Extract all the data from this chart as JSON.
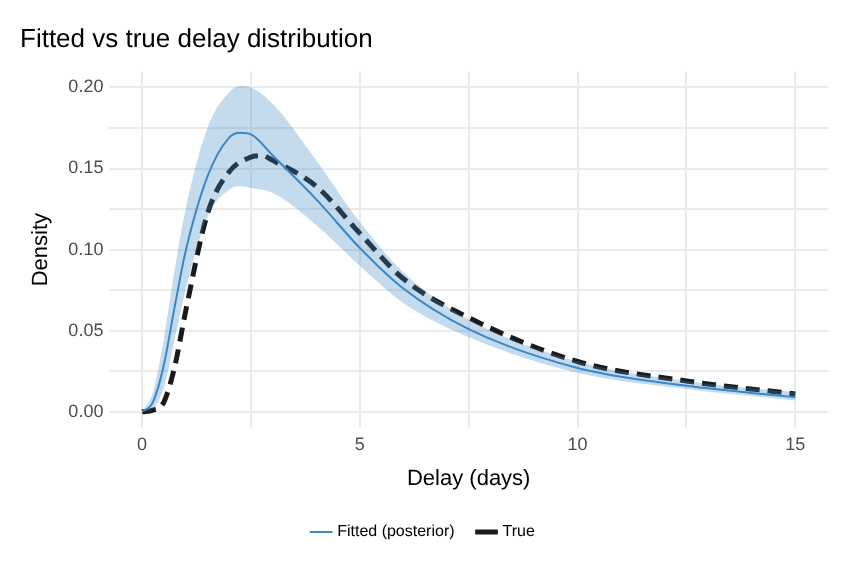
{
  "chart_data": {
    "type": "line",
    "title": "Fitted vs true delay distribution",
    "xlabel": "Delay (days)",
    "ylabel": "Density",
    "xlim": [
      -0.75,
      15.75
    ],
    "xticks": [
      0,
      {
        "value": 2.5,
        "label": null
      },
      5,
      {
        "value": 7.5,
        "label": null
      },
      10,
      {
        "value": 12.5,
        "label": null
      },
      15
    ],
    "ylim": [
      -0.01,
      0.21
    ],
    "yticks": [
      {
        "value": 0,
        "label": "0.00"
      },
      {
        "value": 0.025,
        "label": null
      },
      0.05,
      {
        "value": 0.075,
        "label": null
      },
      {
        "value": 0.1,
        "label": "0.10"
      },
      {
        "value": 0.125,
        "label": null
      },
      0.15,
      {
        "value": 0.175,
        "label": null
      },
      {
        "value": 0.2,
        "label": "0.20"
      }
    ],
    "grid": true,
    "legend": "bottom",
    "marker": "none",
    "series": [
      {
        "name": "Fitted (posterior)",
        "color": "#3a87c8",
        "line_style": "solid",
        "x": [
          0,
          0.25,
          0.5,
          0.75,
          1,
          1.5,
          2,
          2.25,
          2.5,
          3,
          4,
          5,
          6,
          7.5,
          10,
          12.5,
          15
        ],
        "values": [
          0,
          0.006,
          0.029,
          0.065,
          0.099,
          0.145,
          0.169,
          0.172,
          0.171,
          0.158,
          0.131,
          0.101,
          0.076,
          0.051,
          0.027,
          0.016,
          0.009
        ],
        "lower": [
          0,
          0.002,
          0.015,
          0.045,
          0.075,
          0.12,
          0.137,
          0.139,
          0.138,
          0.135,
          0.115,
          0.09,
          0.067,
          0.046,
          0.024,
          0.014,
          0.007
        ],
        "upper": [
          0,
          0.012,
          0.045,
          0.088,
          0.125,
          0.175,
          0.197,
          0.201,
          0.2,
          0.19,
          0.155,
          0.117,
          0.086,
          0.057,
          0.031,
          0.019,
          0.012
        ]
      },
      {
        "name": "True",
        "color": "#1a1a1a",
        "line_style": "dashed",
        "x": [
          0,
          0.25,
          0.5,
          0.75,
          1,
          1.5,
          2,
          2.5,
          2.75,
          3,
          4,
          5,
          6,
          7.5,
          10,
          12.5,
          15
        ],
        "values": [
          0,
          0.001,
          0.006,
          0.028,
          0.062,
          0.122,
          0.148,
          0.157,
          0.158,
          0.155,
          0.139,
          0.11,
          0.082,
          0.058,
          0.031,
          0.019,
          0.011
        ]
      }
    ]
  }
}
